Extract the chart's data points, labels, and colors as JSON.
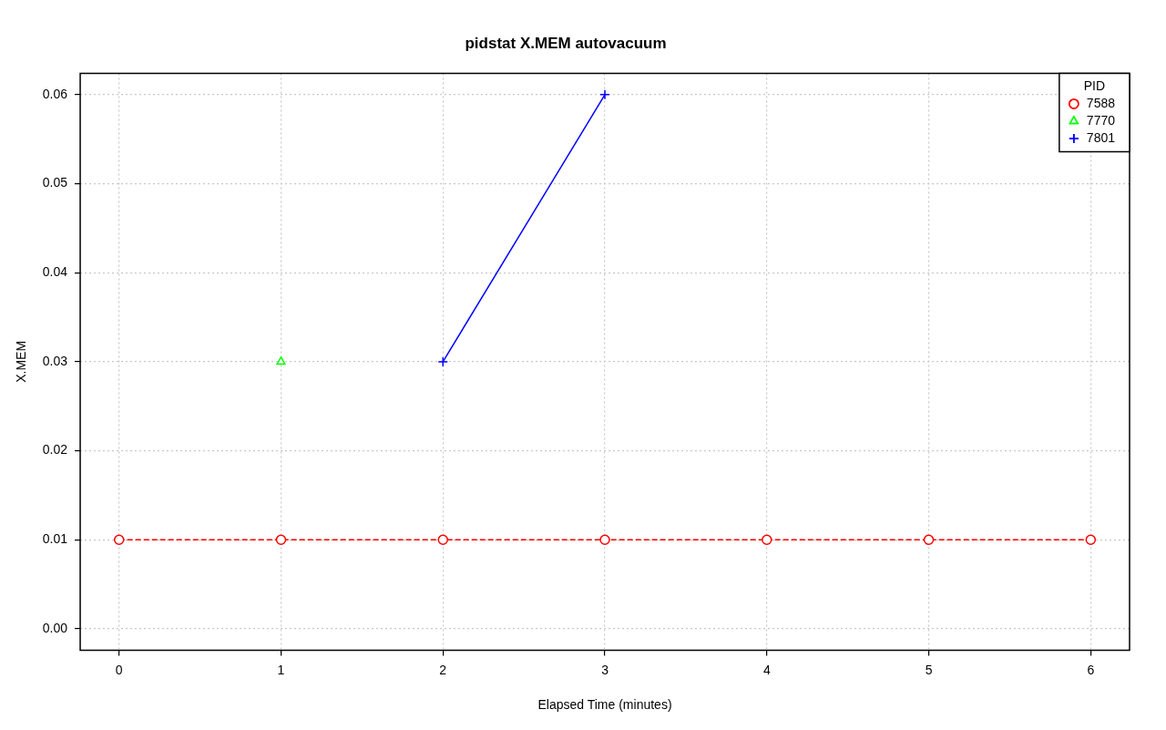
{
  "chart_data": {
    "type": "line",
    "title": "pidstat X.MEM autovacuum",
    "xlabel": "Elapsed Time (minutes)",
    "ylabel": "X.MEM",
    "legend_title": "PID",
    "legend": "top right",
    "grid": true,
    "xlim": [
      -0.24,
      6.24
    ],
    "xticks": [
      0,
      1,
      2,
      3,
      4,
      5,
      6
    ],
    "ylim": [
      -0.0024,
      0.0624
    ],
    "yticks": [
      {
        "value": 0,
        "label": "0.00"
      },
      0.01,
      0.02,
      0.03,
      0.04,
      0.05,
      0.06
    ],
    "series": [
      {
        "name": "7588",
        "color": "#ff0000",
        "marker": "circle",
        "line_style": "dashed",
        "x": [
          0,
          1,
          2,
          3,
          4,
          5,
          6
        ],
        "values": [
          0.01,
          0.01,
          0.01,
          0.01,
          0.01,
          0.01,
          0.01
        ]
      },
      {
        "name": "7770",
        "color": "#00ff00",
        "marker": "triangle",
        "line_style": "dotted",
        "x": [
          1
        ],
        "values": [
          0.03
        ]
      },
      {
        "name": "7801",
        "color": "#0000ff",
        "marker": "cross",
        "line_style": "solid",
        "x": [
          2,
          3
        ],
        "values": [
          0.03,
          0.06
        ]
      }
    ]
  }
}
